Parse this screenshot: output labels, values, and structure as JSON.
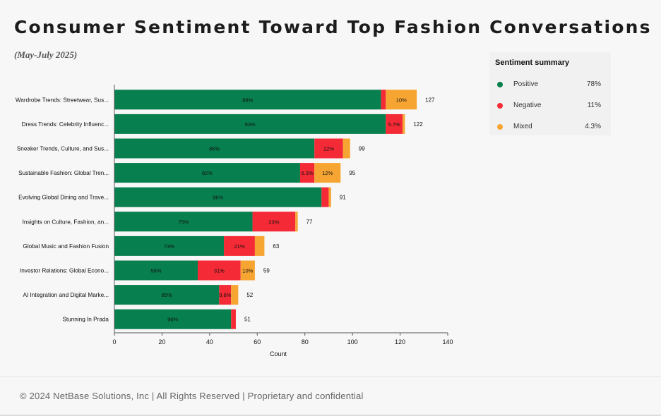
{
  "title": "Consumer Sentiment Toward Top Fashion Conversations",
  "subtitle": "(May-July 2025)",
  "summary": {
    "title": "Sentiment summary",
    "items": [
      {
        "label": "Positive",
        "value": "78%",
        "color": "#087f4f"
      },
      {
        "label": "Negative",
        "value": "11%",
        "color": "#f42a36"
      },
      {
        "label": "Mixed",
        "value": "4.3%",
        "color": "#f7a532"
      }
    ]
  },
  "footer": "© 2024 NetBase Solutions, Inc | All Rights Reserved | Proprietary and confidential",
  "chart_data": {
    "type": "bar",
    "orientation": "horizontal",
    "stacked": true,
    "xlabel": "Count",
    "xlim": [
      0,
      140
    ],
    "xticks": [
      0,
      20,
      40,
      60,
      80,
      100,
      120,
      140
    ],
    "grid": false,
    "categories": [
      "Wardrobe Trends: Streetwear, Sus...",
      "Dress Trends: Celebrity Influenc...",
      "Sneaker Trends, Culture, and Sus...",
      "Sustainable Fashion: Global Tren...",
      "Evolving Global Dining and Trave...",
      "Insights on Culture, Fashion, an...",
      "Global Music and Fashion Fusion",
      "Investor Relations: Global Econo...",
      "AI Integration and Digital Marke...",
      "Stunning In Prada"
    ],
    "totals": [
      127,
      122,
      99,
      95,
      91,
      77,
      63,
      59,
      52,
      51
    ],
    "series": [
      {
        "name": "Positive",
        "color": "#087f4f",
        "values": [
          112,
          114,
          84,
          78,
          87,
          58,
          46,
          35,
          44,
          49
        ],
        "labels": [
          "88%",
          "93%",
          "85%",
          "82%",
          "96%",
          "75%",
          "73%",
          "59%",
          "85%",
          "96%"
        ]
      },
      {
        "name": "Negative",
        "color": "#f42a36",
        "values": [
          2,
          7,
          12,
          6,
          3,
          18,
          13,
          18,
          5,
          2
        ],
        "labels": [
          "",
          "5.7%",
          "12%",
          "6.3%",
          "",
          "23%",
          "21%",
          "31%",
          "9.6%",
          ""
        ]
      },
      {
        "name": "Mixed",
        "color": "#f7a532",
        "values": [
          13,
          1,
          3,
          11,
          1,
          1,
          4,
          6,
          3,
          0
        ],
        "labels": [
          "10%",
          "",
          "",
          "12%",
          "",
          "",
          "",
          "10%",
          "",
          ""
        ]
      }
    ]
  }
}
